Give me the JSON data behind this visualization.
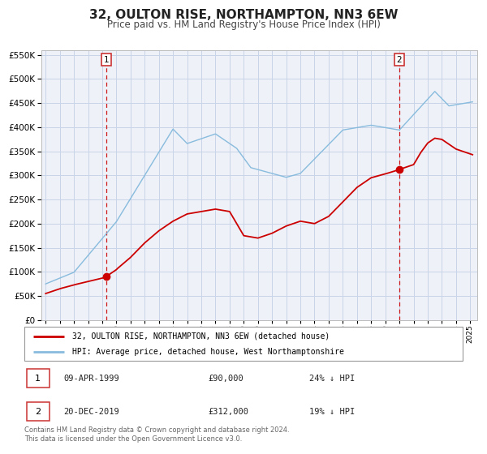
{
  "title": "32, OULTON RISE, NORTHAMPTON, NN3 6EW",
  "subtitle": "Price paid vs. HM Land Registry's House Price Index (HPI)",
  "title_fontsize": 11,
  "subtitle_fontsize": 8.5,
  "background_color": "#ffffff",
  "plot_bg_color": "#eef2f8",
  "grid_color": "#c8d4e8",
  "red_color": "#cc0000",
  "blue_color": "#88bbdd",
  "sale1_year": 1999.27,
  "sale1_price": 90000,
  "sale2_year": 2019.97,
  "sale2_price": 312000,
  "legend_line1": "32, OULTON RISE, NORTHAMPTON, NN3 6EW (detached house)",
  "legend_line2": "HPI: Average price, detached house, West Northamptonshire",
  "annotation1_label": "1",
  "annotation1_date": "09-APR-1999",
  "annotation1_price": "£90,000",
  "annotation1_hpi": "24% ↓ HPI",
  "annotation2_label": "2",
  "annotation2_date": "20-DEC-2019",
  "annotation2_price": "£312,000",
  "annotation2_hpi": "19% ↓ HPI",
  "footer": "Contains HM Land Registry data © Crown copyright and database right 2024.\nThis data is licensed under the Open Government Licence v3.0.",
  "ylim": [
    0,
    560000
  ],
  "yticks": [
    0,
    50000,
    100000,
    150000,
    200000,
    250000,
    300000,
    350000,
    400000,
    450000,
    500000,
    550000
  ],
  "xlim_start": 1994.7,
  "xlim_end": 2025.5
}
